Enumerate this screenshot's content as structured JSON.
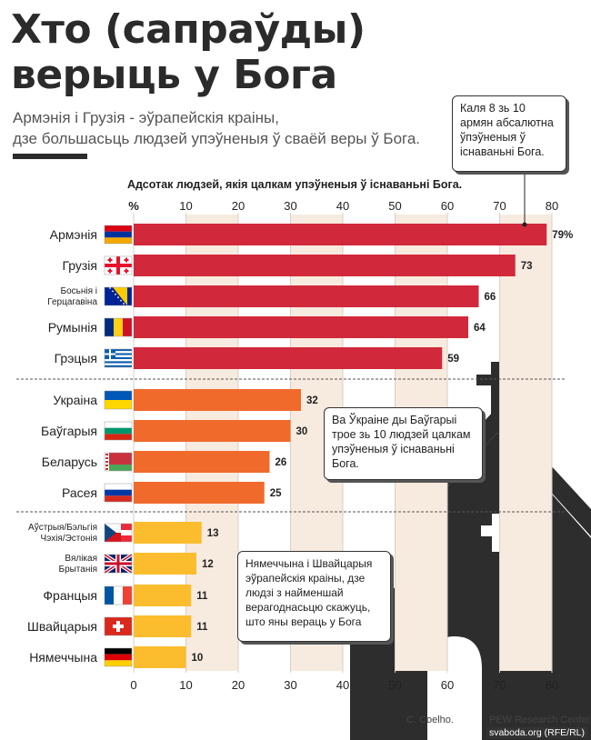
{
  "title_line1": "Хто (сапраўды)",
  "title_line2": "верыць у Бога",
  "subtitle_line1": "Армэнія і Грузія - эўрапейскія краіны,",
  "subtitle_line2": "дзе большасьць людзей упэўненыя ў сваёй веры ў Бога.",
  "callouts": {
    "armenia": "Каля 8 зь 10 армян абсалютна ўпэўненыя ў існаваньні Бога.",
    "ukraine": "Ва Ўкраіне ды Баўгарыі трое зь 10 людзей цалкам упэўненыя ў існаваньні Бога.",
    "germany": "Нямеччына і Швайцарыя эўрапейскія краіны, дзе людзі з найменшай верагоднасьцю скажуць, што яны вераць у Бога"
  },
  "credits": {
    "author": "C. Coelho.",
    "source": "PEW Research Center",
    "site": "svaboda.org (RFE/RL)"
  },
  "chart_data": {
    "type": "bar",
    "orientation": "horizontal",
    "title": "Адсотак людзей, якія цалкам упэўненыя ў існаваньні Бога.",
    "x_unit_label": "%",
    "xlim": [
      0,
      80
    ],
    "xticks": [
      10,
      20,
      30,
      40,
      50,
      60,
      70,
      80
    ],
    "grid": true,
    "categories": [
      "Армэнія",
      "Грузія",
      "Босьнія і Герцагавіна",
      "Румынія",
      "Грэцыя",
      "Украіна",
      "Баўгарыя",
      "Беларусь",
      "Расея",
      "Аўстрыя/Бэльгія Чэхія/Эстонія",
      "Вялікая Брытанія",
      "Францыя",
      "Швайцарыя",
      "Нямеччына"
    ],
    "values": [
      79,
      73,
      66,
      64,
      59,
      32,
      30,
      26,
      25,
      13,
      12,
      11,
      11,
      10
    ],
    "value_labels": [
      "79%",
      "73",
      "66",
      "64",
      "59",
      "32",
      "30",
      "26",
      "25",
      "13",
      "12",
      "11",
      "11",
      "10"
    ],
    "groups": [
      {
        "color": "#d1293b",
        "count": 5
      },
      {
        "color": "#f06a2c",
        "count": 4
      },
      {
        "color": "#fbbd2e",
        "count": 5
      }
    ],
    "flags": [
      "armenia",
      "georgia",
      "bosnia",
      "romania",
      "greece",
      "ukraine",
      "bulgaria",
      "belarus",
      "russia",
      "czech",
      "uk",
      "france",
      "switzerland",
      "germany"
    ]
  }
}
